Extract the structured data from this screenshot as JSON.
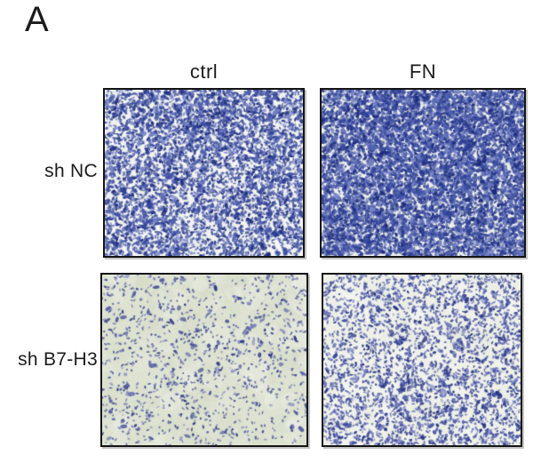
{
  "figure": {
    "panel_label": "A",
    "columns": [
      {
        "label": "ctrl"
      },
      {
        "label": "FN"
      }
    ],
    "rows": [
      {
        "label": "sh NC"
      },
      {
        "label": "sh B7-H3"
      }
    ],
    "colors": {
      "border": "#141414",
      "text": "#1b1b1b",
      "stain_blue": "#2e3f93"
    },
    "micrographs": [
      {
        "id": "shnc-ctrl",
        "row_label": "sh NC",
        "column_label": "ctrl",
        "cell_density": "high",
        "background": "#f2f3ef",
        "mottle": "#e0e4ea",
        "palette": [
          "#1b2a7a",
          "#2c3d92",
          "#3a4ca1",
          "#5162b1",
          "#7280c3"
        ],
        "seed": 101,
        "attempts": 9500,
        "base": 0.45,
        "dot_scale": 1.1,
        "clusters": [
          [
            0.5,
            0.08,
            0.18,
            0.22,
            0.45
          ],
          [
            0.9,
            0.45,
            0.2,
            0.3,
            0.15
          ],
          [
            0.12,
            0.75,
            0.18,
            0.25,
            0.15
          ]
        ]
      },
      {
        "id": "shnc-fn",
        "row_label": "sh NC",
        "column_label": "FN",
        "cell_density": "very high",
        "background": "#edefe9",
        "mottle": "#dde2e6",
        "palette": [
          "#1b2a7a",
          "#2c3d92",
          "#3a4ca1",
          "#5162b1",
          "#7280c3"
        ],
        "seed": 202,
        "attempts": 11000,
        "base": 0.65,
        "dot_scale": 1.18,
        "clusters": [
          [
            0.55,
            0.2,
            0.35,
            0.25,
            0.25
          ],
          [
            0.4,
            0.85,
            0.4,
            0.2,
            0.15
          ]
        ]
      },
      {
        "id": "shb7h3-ctrl",
        "row_label": "sh B7-H3",
        "column_label": "ctrl",
        "cell_density": "low",
        "background": "#dde2d1",
        "mottle": "#ccd3bd",
        "palette": [
          "#2a3580",
          "#3e4794",
          "#575ea8",
          "#7b7fba"
        ],
        "seed": 303,
        "attempts": 2600,
        "base": 0.37,
        "dot_scale": 0.95,
        "clusters": [
          [
            0.2,
            0.55,
            0.25,
            0.3,
            0.12
          ],
          [
            0.85,
            0.25,
            0.2,
            0.25,
            0.1
          ]
        ]
      },
      {
        "id": "shb7h3-fn",
        "row_label": "sh B7-H3",
        "column_label": "FN",
        "cell_density": "medium",
        "background": "#eff1e9",
        "mottle": "#e0e4d8",
        "palette": [
          "#25317f",
          "#36459a",
          "#4c58a8",
          "#6d77bb"
        ],
        "seed": 404,
        "attempts": 5600,
        "base": 0.47,
        "dot_scale": 1.0,
        "clusters": [
          [
            0.35,
            0.85,
            0.4,
            0.2,
            0.18
          ],
          [
            0.8,
            0.4,
            0.25,
            0.35,
            0.1
          ]
        ]
      }
    ]
  }
}
